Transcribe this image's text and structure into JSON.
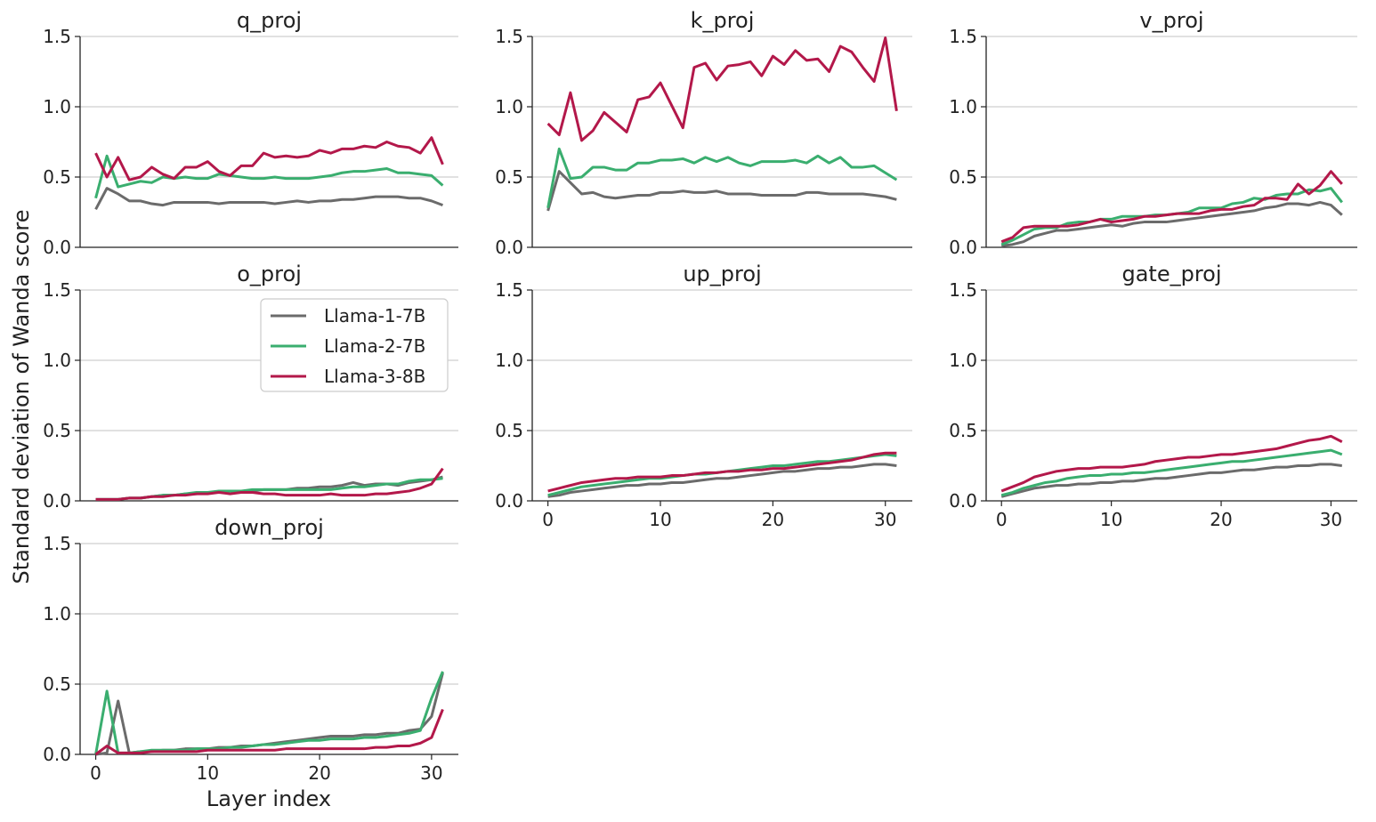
{
  "figure": {
    "ylabel": "Standard deviation of Wanda score",
    "xlabel": "Layer index"
  },
  "legend": {
    "entries": [
      {
        "name": "Llama-1-7B",
        "color": "#6b6b6b"
      },
      {
        "name": "Llama-2-7B",
        "color": "#3aae6f"
      },
      {
        "name": "Llama-3-8B",
        "color": "#b3184a"
      }
    ]
  },
  "chart_data": [
    {
      "type": "line",
      "title": "q_proj",
      "x": [
        0,
        1,
        2,
        3,
        4,
        5,
        6,
        7,
        8,
        9,
        10,
        11,
        12,
        13,
        14,
        15,
        16,
        17,
        18,
        19,
        20,
        21,
        22,
        23,
        24,
        25,
        26,
        27,
        28,
        29,
        30,
        31
      ],
      "ylim": [
        0,
        1.5
      ],
      "yticks": [
        0.0,
        0.5,
        1.0,
        1.5
      ],
      "ytick_labels": [
        "0.0",
        "0.5",
        "1.0",
        "1.5"
      ],
      "xticks": [],
      "xtick_labels": [],
      "series": [
        {
          "name": "Llama-1-7B",
          "values": [
            0.27,
            0.42,
            0.38,
            0.33,
            0.33,
            0.31,
            0.3,
            0.32,
            0.32,
            0.32,
            0.32,
            0.31,
            0.32,
            0.32,
            0.32,
            0.32,
            0.31,
            0.32,
            0.33,
            0.32,
            0.33,
            0.33,
            0.34,
            0.34,
            0.35,
            0.36,
            0.36,
            0.36,
            0.35,
            0.35,
            0.33,
            0.3
          ]
        },
        {
          "name": "Llama-2-7B",
          "values": [
            0.35,
            0.65,
            0.43,
            0.45,
            0.47,
            0.46,
            0.5,
            0.49,
            0.5,
            0.49,
            0.49,
            0.52,
            0.51,
            0.5,
            0.49,
            0.49,
            0.5,
            0.49,
            0.49,
            0.49,
            0.5,
            0.51,
            0.53,
            0.54,
            0.54,
            0.55,
            0.56,
            0.53,
            0.53,
            0.52,
            0.51,
            0.44
          ]
        },
        {
          "name": "Llama-3-8B",
          "values": [
            0.67,
            0.5,
            0.64,
            0.48,
            0.5,
            0.57,
            0.52,
            0.49,
            0.57,
            0.57,
            0.61,
            0.54,
            0.51,
            0.58,
            0.58,
            0.67,
            0.64,
            0.65,
            0.64,
            0.65,
            0.69,
            0.67,
            0.7,
            0.7,
            0.72,
            0.71,
            0.75,
            0.72,
            0.71,
            0.67,
            0.78,
            0.59
          ]
        }
      ]
    },
    {
      "type": "line",
      "title": "k_proj",
      "x": [
        0,
        1,
        2,
        3,
        4,
        5,
        6,
        7,
        8,
        9,
        10,
        11,
        12,
        13,
        14,
        15,
        16,
        17,
        18,
        19,
        20,
        21,
        22,
        23,
        24,
        25,
        26,
        27,
        28,
        29,
        30,
        31
      ],
      "ylim": [
        0,
        1.5
      ],
      "yticks": [
        0.0,
        0.5,
        1.0,
        1.5
      ],
      "ytick_labels": [
        "0.0",
        "0.5",
        "1.0",
        "1.5"
      ],
      "xticks": [],
      "xtick_labels": [],
      "series": [
        {
          "name": "Llama-1-7B",
          "values": [
            0.26,
            0.54,
            0.46,
            0.38,
            0.39,
            0.36,
            0.35,
            0.36,
            0.37,
            0.37,
            0.39,
            0.39,
            0.4,
            0.39,
            0.39,
            0.4,
            0.38,
            0.38,
            0.38,
            0.37,
            0.37,
            0.37,
            0.37,
            0.39,
            0.39,
            0.38,
            0.38,
            0.38,
            0.38,
            0.37,
            0.36,
            0.34
          ]
        },
        {
          "name": "Llama-2-7B",
          "values": [
            0.28,
            0.7,
            0.49,
            0.5,
            0.57,
            0.57,
            0.55,
            0.55,
            0.6,
            0.6,
            0.62,
            0.62,
            0.63,
            0.6,
            0.64,
            0.61,
            0.64,
            0.6,
            0.58,
            0.61,
            0.61,
            0.61,
            0.62,
            0.6,
            0.65,
            0.6,
            0.64,
            0.57,
            0.57,
            0.58,
            0.53,
            0.48
          ]
        },
        {
          "name": "Llama-3-8B",
          "values": [
            0.88,
            0.8,
            1.1,
            0.76,
            0.83,
            0.96,
            0.89,
            0.82,
            1.05,
            1.07,
            1.17,
            1.01,
            0.85,
            1.28,
            1.31,
            1.19,
            1.29,
            1.3,
            1.32,
            1.22,
            1.36,
            1.3,
            1.4,
            1.33,
            1.34,
            1.25,
            1.43,
            1.39,
            1.28,
            1.18,
            1.49,
            0.97
          ]
        }
      ]
    },
    {
      "type": "line",
      "title": "v_proj",
      "x": [
        0,
        1,
        2,
        3,
        4,
        5,
        6,
        7,
        8,
        9,
        10,
        11,
        12,
        13,
        14,
        15,
        16,
        17,
        18,
        19,
        20,
        21,
        22,
        23,
        24,
        25,
        26,
        27,
        28,
        29,
        30,
        31
      ],
      "ylim": [
        0,
        1.5
      ],
      "yticks": [
        0.0,
        0.5,
        1.0,
        1.5
      ],
      "ytick_labels": [
        "0.0",
        "0.5",
        "1.0",
        "1.5"
      ],
      "xticks": [],
      "xtick_labels": [],
      "series": [
        {
          "name": "Llama-1-7B",
          "values": [
            0.01,
            0.02,
            0.04,
            0.08,
            0.1,
            0.12,
            0.12,
            0.13,
            0.14,
            0.15,
            0.16,
            0.15,
            0.17,
            0.18,
            0.18,
            0.18,
            0.19,
            0.2,
            0.21,
            0.22,
            0.23,
            0.24,
            0.25,
            0.26,
            0.28,
            0.29,
            0.31,
            0.31,
            0.3,
            0.32,
            0.3,
            0.23
          ]
        },
        {
          "name": "Llama-2-7B",
          "values": [
            0.02,
            0.05,
            0.09,
            0.13,
            0.14,
            0.14,
            0.17,
            0.18,
            0.18,
            0.2,
            0.2,
            0.22,
            0.22,
            0.22,
            0.23,
            0.23,
            0.24,
            0.25,
            0.28,
            0.28,
            0.28,
            0.31,
            0.32,
            0.35,
            0.34,
            0.37,
            0.38,
            0.38,
            0.41,
            0.4,
            0.42,
            0.32
          ]
        },
        {
          "name": "Llama-3-8B",
          "values": [
            0.04,
            0.07,
            0.14,
            0.15,
            0.15,
            0.15,
            0.15,
            0.16,
            0.18,
            0.2,
            0.18,
            0.19,
            0.2,
            0.22,
            0.22,
            0.23,
            0.24,
            0.24,
            0.24,
            0.26,
            0.27,
            0.27,
            0.29,
            0.3,
            0.35,
            0.35,
            0.34,
            0.45,
            0.38,
            0.44,
            0.54,
            0.45
          ]
        }
      ]
    },
    {
      "type": "line",
      "title": "o_proj",
      "x": [
        0,
        1,
        2,
        3,
        4,
        5,
        6,
        7,
        8,
        9,
        10,
        11,
        12,
        13,
        14,
        15,
        16,
        17,
        18,
        19,
        20,
        21,
        22,
        23,
        24,
        25,
        26,
        27,
        28,
        29,
        30,
        31
      ],
      "ylim": [
        0,
        1.5
      ],
      "yticks": [
        0.0,
        0.5,
        1.0,
        1.5
      ],
      "ytick_labels": [
        "0.0",
        "0.5",
        "1.0",
        "1.5"
      ],
      "xticks": [],
      "xtick_labels": [],
      "series": [
        {
          "name": "Llama-1-7B",
          "values": [
            0.01,
            0.01,
            0.01,
            0.02,
            0.02,
            0.03,
            0.04,
            0.04,
            0.05,
            0.05,
            0.06,
            0.06,
            0.07,
            0.07,
            0.07,
            0.08,
            0.08,
            0.08,
            0.09,
            0.09,
            0.1,
            0.1,
            0.11,
            0.13,
            0.11,
            0.12,
            0.12,
            0.11,
            0.13,
            0.14,
            0.15,
            0.17
          ]
        },
        {
          "name": "Llama-2-7B",
          "values": [
            0.01,
            0.01,
            0.01,
            0.02,
            0.02,
            0.03,
            0.04,
            0.04,
            0.05,
            0.06,
            0.06,
            0.07,
            0.07,
            0.07,
            0.08,
            0.08,
            0.08,
            0.08,
            0.08,
            0.08,
            0.08,
            0.08,
            0.09,
            0.1,
            0.1,
            0.11,
            0.12,
            0.12,
            0.14,
            0.15,
            0.15,
            0.16
          ]
        },
        {
          "name": "Llama-3-8B",
          "values": [
            0.01,
            0.01,
            0.01,
            0.02,
            0.02,
            0.03,
            0.03,
            0.04,
            0.04,
            0.05,
            0.05,
            0.06,
            0.05,
            0.06,
            0.06,
            0.05,
            0.05,
            0.04,
            0.04,
            0.04,
            0.04,
            0.05,
            0.04,
            0.04,
            0.04,
            0.05,
            0.05,
            0.06,
            0.07,
            0.09,
            0.12,
            0.23
          ]
        }
      ]
    },
    {
      "type": "line",
      "title": "up_proj",
      "x": [
        0,
        1,
        2,
        3,
        4,
        5,
        6,
        7,
        8,
        9,
        10,
        11,
        12,
        13,
        14,
        15,
        16,
        17,
        18,
        19,
        20,
        21,
        22,
        23,
        24,
        25,
        26,
        27,
        28,
        29,
        30,
        31
      ],
      "ylim": [
        0,
        1.5
      ],
      "yticks": [
        0.0,
        0.5,
        1.0,
        1.5
      ],
      "ytick_labels": [
        "0.0",
        "0.5",
        "1.0",
        "1.5"
      ],
      "xticks": [
        0,
        10,
        20,
        30
      ],
      "xtick_labels": [
        "0",
        "10",
        "20",
        "30"
      ],
      "series": [
        {
          "name": "Llama-1-7B",
          "values": [
            0.03,
            0.04,
            0.06,
            0.07,
            0.08,
            0.09,
            0.1,
            0.11,
            0.11,
            0.12,
            0.12,
            0.13,
            0.13,
            0.14,
            0.15,
            0.16,
            0.16,
            0.17,
            0.18,
            0.19,
            0.2,
            0.21,
            0.21,
            0.22,
            0.23,
            0.23,
            0.24,
            0.24,
            0.25,
            0.26,
            0.26,
            0.25
          ]
        },
        {
          "name": "Llama-2-7B",
          "values": [
            0.04,
            0.06,
            0.08,
            0.1,
            0.11,
            0.12,
            0.13,
            0.14,
            0.15,
            0.16,
            0.16,
            0.17,
            0.18,
            0.19,
            0.19,
            0.2,
            0.21,
            0.22,
            0.23,
            0.24,
            0.25,
            0.25,
            0.26,
            0.27,
            0.28,
            0.28,
            0.29,
            0.3,
            0.31,
            0.32,
            0.33,
            0.32
          ]
        },
        {
          "name": "Llama-3-8B",
          "values": [
            0.07,
            0.09,
            0.11,
            0.13,
            0.14,
            0.15,
            0.16,
            0.16,
            0.17,
            0.17,
            0.17,
            0.18,
            0.18,
            0.19,
            0.2,
            0.2,
            0.21,
            0.21,
            0.22,
            0.22,
            0.23,
            0.23,
            0.24,
            0.25,
            0.26,
            0.27,
            0.28,
            0.29,
            0.31,
            0.33,
            0.34,
            0.34
          ]
        }
      ]
    },
    {
      "type": "line",
      "title": "gate_proj",
      "x": [
        0,
        1,
        2,
        3,
        4,
        5,
        6,
        7,
        8,
        9,
        10,
        11,
        12,
        13,
        14,
        15,
        16,
        17,
        18,
        19,
        20,
        21,
        22,
        23,
        24,
        25,
        26,
        27,
        28,
        29,
        30,
        31
      ],
      "ylim": [
        0,
        1.5
      ],
      "yticks": [
        0.0,
        0.5,
        1.0,
        1.5
      ],
      "ytick_labels": [
        "0.0",
        "0.5",
        "1.0",
        "1.5"
      ],
      "xticks": [
        0,
        10,
        20,
        30
      ],
      "xtick_labels": [
        "0",
        "10",
        "20",
        "30"
      ],
      "series": [
        {
          "name": "Llama-1-7B",
          "values": [
            0.03,
            0.05,
            0.07,
            0.09,
            0.1,
            0.11,
            0.11,
            0.12,
            0.12,
            0.13,
            0.13,
            0.14,
            0.14,
            0.15,
            0.16,
            0.16,
            0.17,
            0.18,
            0.19,
            0.2,
            0.2,
            0.21,
            0.22,
            0.22,
            0.23,
            0.24,
            0.24,
            0.25,
            0.25,
            0.26,
            0.26,
            0.25
          ]
        },
        {
          "name": "Llama-2-7B",
          "values": [
            0.04,
            0.06,
            0.09,
            0.11,
            0.13,
            0.14,
            0.16,
            0.17,
            0.18,
            0.18,
            0.19,
            0.19,
            0.2,
            0.2,
            0.21,
            0.22,
            0.23,
            0.24,
            0.25,
            0.26,
            0.27,
            0.28,
            0.28,
            0.29,
            0.3,
            0.31,
            0.32,
            0.33,
            0.34,
            0.35,
            0.36,
            0.33
          ]
        },
        {
          "name": "Llama-3-8B",
          "values": [
            0.07,
            0.1,
            0.13,
            0.17,
            0.19,
            0.21,
            0.22,
            0.23,
            0.23,
            0.24,
            0.24,
            0.24,
            0.25,
            0.26,
            0.28,
            0.29,
            0.3,
            0.31,
            0.31,
            0.32,
            0.33,
            0.33,
            0.34,
            0.35,
            0.36,
            0.37,
            0.39,
            0.41,
            0.43,
            0.44,
            0.46,
            0.42
          ]
        }
      ]
    },
    {
      "type": "line",
      "title": "down_proj",
      "x": [
        0,
        1,
        2,
        3,
        4,
        5,
        6,
        7,
        8,
        9,
        10,
        11,
        12,
        13,
        14,
        15,
        16,
        17,
        18,
        19,
        20,
        21,
        22,
        23,
        24,
        25,
        26,
        27,
        28,
        29,
        30,
        31
      ],
      "ylim": [
        0,
        1.5
      ],
      "yticks": [
        0.0,
        0.5,
        1.0,
        1.5
      ],
      "ytick_labels": [
        "0.0",
        "0.5",
        "1.0",
        "1.5"
      ],
      "xticks": [
        0,
        10,
        20,
        30
      ],
      "xtick_labels": [
        "0",
        "10",
        "20",
        "30"
      ],
      "series": [
        {
          "name": "Llama-1-7B",
          "values": [
            0.0,
            0.01,
            0.38,
            0.01,
            0.02,
            0.02,
            0.03,
            0.03,
            0.04,
            0.04,
            0.04,
            0.05,
            0.05,
            0.06,
            0.06,
            0.07,
            0.08,
            0.09,
            0.1,
            0.11,
            0.12,
            0.13,
            0.13,
            0.13,
            0.14,
            0.14,
            0.15,
            0.15,
            0.17,
            0.18,
            0.27,
            0.58
          ]
        },
        {
          "name": "Llama-2-7B",
          "values": [
            0.0,
            0.45,
            0.01,
            0.01,
            0.02,
            0.03,
            0.03,
            0.03,
            0.03,
            0.04,
            0.04,
            0.04,
            0.05,
            0.05,
            0.06,
            0.07,
            0.07,
            0.08,
            0.09,
            0.1,
            0.1,
            0.11,
            0.11,
            0.11,
            0.12,
            0.12,
            0.13,
            0.14,
            0.15,
            0.17,
            0.4,
            0.59
          ]
        },
        {
          "name": "Llama-3-8B",
          "values": [
            0.0,
            0.06,
            0.01,
            0.01,
            0.01,
            0.02,
            0.02,
            0.02,
            0.02,
            0.02,
            0.03,
            0.03,
            0.03,
            0.03,
            0.03,
            0.03,
            0.03,
            0.04,
            0.04,
            0.04,
            0.04,
            0.04,
            0.04,
            0.04,
            0.04,
            0.05,
            0.05,
            0.06,
            0.06,
            0.08,
            0.12,
            0.32
          ]
        }
      ]
    }
  ]
}
